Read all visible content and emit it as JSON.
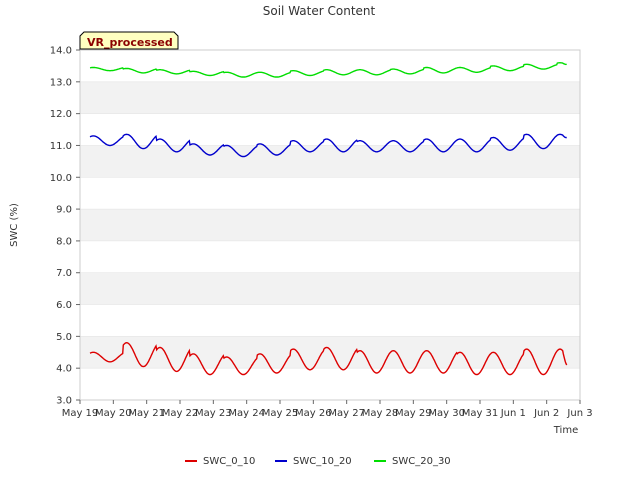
{
  "chart_data": {
    "type": "line",
    "title": "Soil Water Content",
    "xlabel": "Time",
    "ylabel": "SWC (%)",
    "badge": "VR_processed",
    "ylim": [
      3.0,
      14.0
    ],
    "yticks": [
      "3.0",
      "4.0",
      "5.0",
      "6.0",
      "7.0",
      "8.0",
      "9.0",
      "10.0",
      "11.0",
      "12.0",
      "13.0",
      "14.0"
    ],
    "xlim": [
      0,
      15
    ],
    "xticks": [
      "May 19",
      "May 20",
      "May 21",
      "May 22",
      "May 23",
      "May 24",
      "May 25",
      "May 26",
      "May 27",
      "May 28",
      "May 29",
      "May 30",
      "May 31",
      "Jun 1",
      "Jun 2",
      "Jun 3"
    ],
    "grid": "alternating horizontal bands",
    "legend_position": "bottom",
    "series": [
      {
        "name": "SWC_0_10",
        "color": "#dd0000",
        "x_start": 0.3,
        "x_end": 14.6,
        "daily_peaks": [
          4.5,
          4.8,
          4.65,
          4.45,
          4.35,
          4.45,
          4.6,
          4.65,
          4.55,
          4.55,
          4.55,
          4.5,
          4.5,
          4.6,
          4.6
        ],
        "daily_troughs": [
          4.2,
          4.05,
          3.9,
          3.8,
          3.8,
          3.85,
          3.95,
          3.95,
          3.85,
          3.85,
          3.85,
          3.8,
          3.8,
          3.8,
          3.8
        ],
        "end_value": 4.1
      },
      {
        "name": "SWC_10_20",
        "color": "#0000cc",
        "x_start": 0.3,
        "x_end": 14.6,
        "daily_peaks": [
          11.3,
          11.35,
          11.2,
          11.05,
          11.0,
          11.05,
          11.15,
          11.2,
          11.15,
          11.15,
          11.2,
          11.2,
          11.25,
          11.35,
          11.35
        ],
        "daily_troughs": [
          11.0,
          10.9,
          10.8,
          10.7,
          10.65,
          10.7,
          10.8,
          10.8,
          10.8,
          10.8,
          10.8,
          10.8,
          10.85,
          10.9,
          10.95
        ],
        "end_value": 11.25
      },
      {
        "name": "SWC_20_30",
        "color": "#00dd00",
        "x_start": 0.3,
        "x_end": 14.6,
        "daily_peaks": [
          13.45,
          13.42,
          13.38,
          13.33,
          13.3,
          13.3,
          13.35,
          13.38,
          13.38,
          13.4,
          13.45,
          13.45,
          13.5,
          13.55,
          13.6
        ],
        "daily_troughs": [
          13.35,
          13.28,
          13.25,
          13.2,
          13.15,
          13.15,
          13.2,
          13.22,
          13.22,
          13.25,
          13.28,
          13.3,
          13.35,
          13.4,
          13.4
        ],
        "end_value": 13.55
      }
    ]
  }
}
